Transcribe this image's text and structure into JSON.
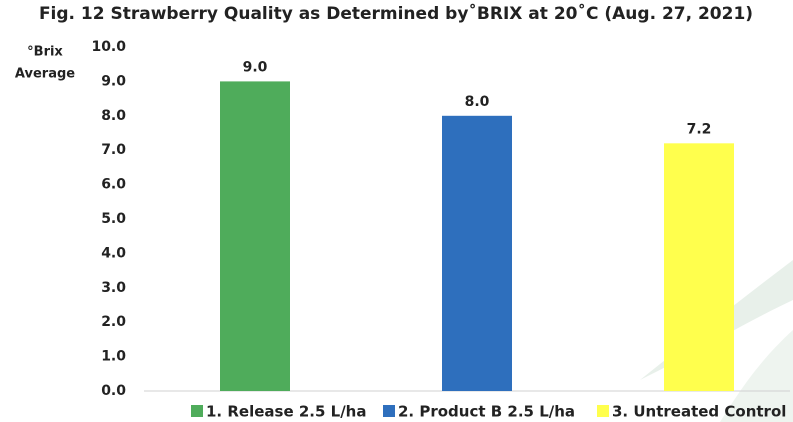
{
  "chart_data": {
    "type": "bar",
    "title": "Fig. 12  Strawberry Quality as Determined by˚BRIX at 20˚C (Aug. 27, 2021)",
    "y_label": [
      "°Brix",
      "Average"
    ],
    "categories": [
      "1. Release 2.5 L/ha",
      "2. Product B 2.5 L/ha",
      "3. Untreated Control"
    ],
    "values": [
      9.0,
      8.0,
      7.2
    ],
    "value_labels": [
      "9.0",
      "8.0",
      "7.2"
    ],
    "colors": [
      "#4fac5b",
      "#2e6fbd",
      "#ffff4d"
    ],
    "ylim": [
      0,
      10
    ],
    "yticks": [
      {
        "value": 0,
        "label": "0.0"
      },
      {
        "value": 1,
        "label": "1.0"
      },
      {
        "value": 2,
        "label": "2.0"
      },
      {
        "value": 3,
        "label": "3.0"
      },
      {
        "value": 4,
        "label": "4.0"
      },
      {
        "value": 5,
        "label": "5.0"
      },
      {
        "value": 6,
        "label": "6.0"
      },
      {
        "value": 7,
        "label": "7.0"
      },
      {
        "value": 8,
        "label": "8.0"
      },
      {
        "value": 9,
        "label": "9.0"
      },
      {
        "value": 10,
        "label": "10.0"
      }
    ],
    "grid": false,
    "legend": "bottom"
  }
}
